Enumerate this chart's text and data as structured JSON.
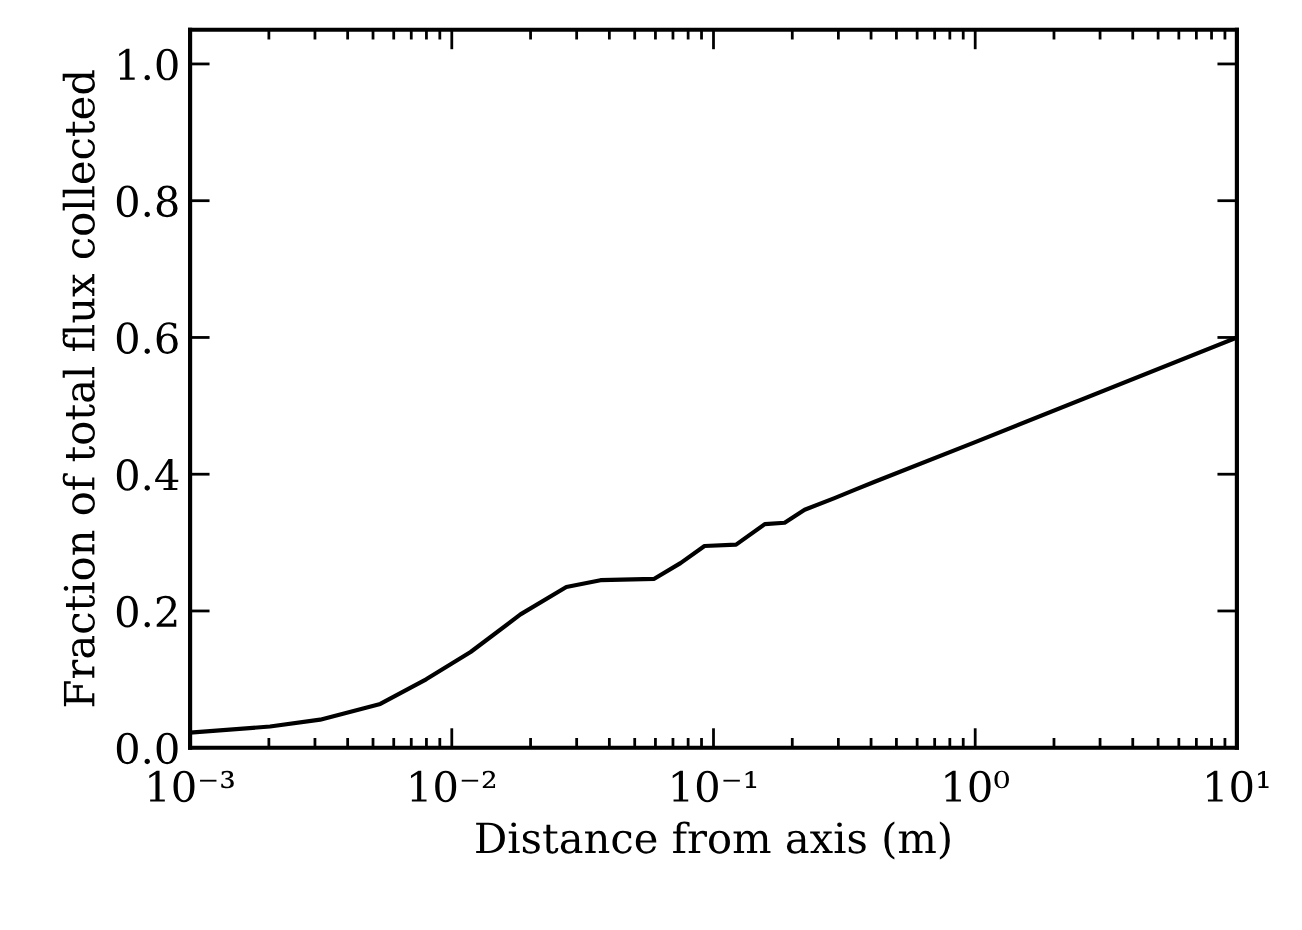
{
  "chart_data": {
    "type": "line",
    "xlabel": "Distance from axis (m)",
    "ylabel": "Fraction of total flux collected",
    "log": "x",
    "x": [
      0.001,
      0.00202,
      0.00314,
      0.00533,
      0.00798,
      0.0118,
      0.0183,
      0.0274,
      0.037,
      0.0594,
      0.0748,
      0.0924,
      0.122,
      0.157,
      0.187,
      0.223,
      0.29,
      0.346,
      0.413,
      1,
      10
    ],
    "series": [
      {
        "color": "#000000",
        "values": [
          0.022,
          0.031,
          0.041,
          0.064,
          0.1,
          0.14,
          0.195,
          0.235,
          0.245,
          0.247,
          0.27,
          0.295,
          0.297,
          0.327,
          0.329,
          0.348,
          0.365,
          0.377,
          0.389,
          0.447,
          0.6
        ]
      }
    ],
    "xlim": [
      0.001,
      10
    ],
    "xticks": [
      {
        "value": 0.001,
        "label": "10⁻³"
      },
      {
        "value": 0.01,
        "label": "10⁻²"
      },
      {
        "value": 0.1,
        "label": "10⁻¹"
      },
      {
        "value": 1,
        "label": "10⁰"
      },
      {
        "value": 10,
        "label": "10¹"
      }
    ],
    "ylim": [
      0,
      1.05
    ],
    "yticks": [
      {
        "value": 0,
        "label": "0.0"
      },
      {
        "value": 0.2,
        "label": "0.2"
      },
      {
        "value": 0.4,
        "label": "0.4"
      },
      {
        "value": 0.6,
        "label": "0.6"
      },
      {
        "value": 0.8,
        "label": "0.8"
      },
      {
        "value": 1.0,
        "label": "1.0"
      }
    ],
    "grid": false,
    "legend": false,
    "marker": "none",
    "line_style": "solid"
  }
}
